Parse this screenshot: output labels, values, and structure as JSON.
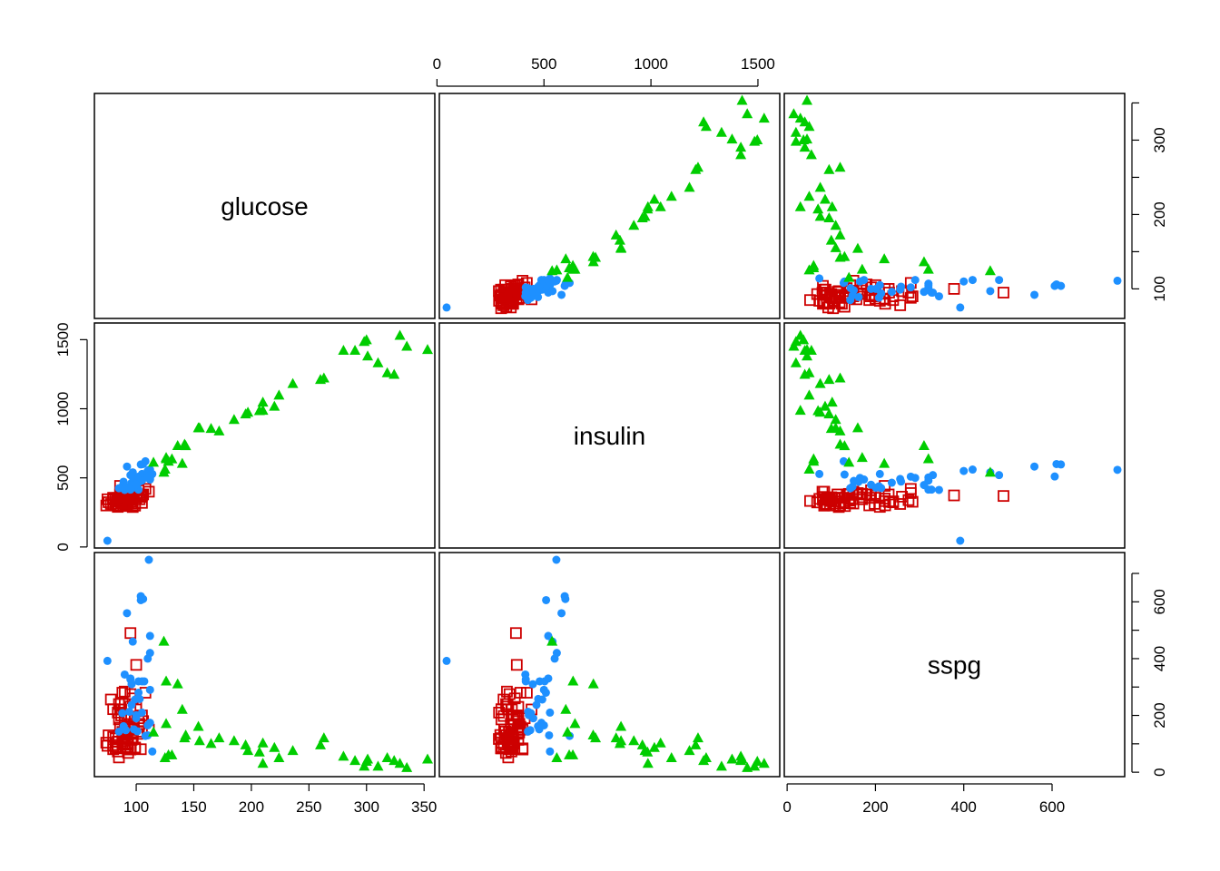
{
  "chart_data": {
    "type": "scatter",
    "variables": [
      "glucose",
      "insulin",
      "sspg"
    ],
    "diag_labels": {
      "glucose": "glucose",
      "insulin": "insulin",
      "sspg": "sspg"
    },
    "ticks": {
      "glucose": {
        "labels": [
          "100",
          "150",
          "200",
          "250",
          "300",
          "350"
        ],
        "values": [
          100,
          150,
          200,
          250,
          300,
          350
        ],
        "minor": [],
        "minor_values": []
      },
      "insulin": {
        "labels": [
          "0",
          "500",
          "1000",
          "1500"
        ],
        "values": [
          0,
          500,
          1000,
          1500
        ],
        "minor": [],
        "minor_values": []
      },
      "sspg": {
        "labels": [
          "0",
          "200",
          "400",
          "600"
        ],
        "values": [
          0,
          200,
          400,
          600
        ],
        "minor": [],
        "minor_values": []
      },
      "glucose_right": {
        "labels": [
          "100",
          "200",
          "300"
        ],
        "values": [
          100,
          200,
          300
        ],
        "minor_values": [
          150,
          250,
          350
        ]
      },
      "sspg_right": {
        "labels": [
          "0",
          "200",
          "400",
          "600"
        ],
        "values": [
          0,
          200,
          400,
          600
        ],
        "minor_values": [
          100,
          300,
          500,
          700
        ]
      }
    },
    "ranges": {
      "glucose": [
        70,
        353
      ],
      "insulin": [
        45,
        1568
      ],
      "sspg": [
        10,
        748
      ]
    },
    "grid": false,
    "legend": "none",
    "series": [
      {
        "group": 3,
        "marker": "square",
        "color": "#cd0000",
        "points": [
          [
            80,
            356,
            124
          ],
          [
            97,
            289,
            117
          ],
          [
            105,
            319,
            143
          ],
          [
            90,
            356,
            199
          ],
          [
            90,
            323,
            240
          ],
          [
            86,
            381,
            157
          ],
          [
            100,
            350,
            221
          ],
          [
            85,
            301,
            186
          ],
          [
            97,
            379,
            142
          ],
          [
            91,
            296,
            131
          ],
          [
            87,
            332,
            221
          ],
          [
            78,
            311,
            256
          ],
          [
            90,
            327,
            284
          ],
          [
            86,
            442,
            221
          ],
          [
            80,
            340,
            81
          ],
          [
            90,
            335,
            100
          ],
          [
            99,
            299,
            84
          ],
          [
            85,
            333,
            52
          ],
          [
            90,
            332,
            97
          ],
          [
            90,
            346,
            150
          ],
          [
            88,
            356,
            102
          ],
          [
            95,
            326,
            231
          ],
          [
            90,
            352,
            141
          ],
          [
            92,
            312,
            198
          ],
          [
            74,
            300,
            104
          ],
          [
            98,
            385,
            170
          ],
          [
            92,
            400,
            84
          ],
          [
            93,
            312,
            97
          ],
          [
            88,
            336,
            142
          ],
          [
            96,
            380,
            114
          ],
          [
            88,
            316,
            130
          ],
          [
            82,
            300,
            119
          ],
          [
            95,
            339,
            275
          ],
          [
            90,
            355,
            187
          ],
          [
            93,
            322,
            68
          ],
          [
            95,
            344,
            86
          ],
          [
            80,
            353,
            96
          ],
          [
            92,
            302,
            89
          ],
          [
            99,
            312,
            87
          ],
          [
            84,
            348,
            73
          ],
          [
            84,
            355,
            107
          ],
          [
            75,
            345,
            93
          ],
          [
            82,
            301,
            84
          ],
          [
            92,
            356,
            117
          ],
          [
            92,
            380,
            190
          ],
          [
            100,
            373,
            378
          ],
          [
            84,
            351,
            108
          ],
          [
            101,
            380,
            135
          ],
          [
            80,
            301,
            222
          ],
          [
            104,
            362,
            81
          ],
          [
            97,
            384,
            140
          ],
          [
            93,
            390,
            160
          ],
          [
            92,
            348,
            140
          ],
          [
            88,
            316,
            120
          ],
          [
            96,
            377,
            150
          ],
          [
            90,
            330,
            110
          ],
          [
            94,
            360,
            170
          ],
          [
            95,
            400,
            80
          ],
          [
            105,
            372,
            200
          ],
          [
            82,
            352,
            90
          ],
          [
            106,
            380,
            180
          ],
          [
            76,
            324,
            130
          ],
          [
            88,
            390,
            280
          ],
          [
            96,
            314,
            150
          ],
          [
            95,
            369,
            490
          ],
          [
            85,
            330,
            240
          ],
          [
            102,
            410,
            190
          ],
          [
            97,
            364,
            260
          ],
          [
            84,
            290,
            210
          ],
          [
            103,
            345,
            170
          ],
          [
            87,
            372,
            200
          ],
          [
            108,
            420,
            280
          ],
          [
            93,
            360,
            100
          ],
          [
            111,
            400,
            150
          ],
          [
            100,
            380,
            230
          ],
          [
            89,
            300,
            120
          ]
        ]
      },
      {
        "group": 2,
        "marker": "circle",
        "color": "#1e90ff",
        "points": [
          [
            98,
            478,
            151
          ],
          [
            88,
            439,
            208
          ],
          [
            100,
            429,
            201
          ],
          [
            89,
            472,
            162
          ],
          [
            91,
            436,
            148
          ],
          [
            90,
            413,
            344
          ],
          [
            94,
            426,
            213
          ],
          [
            85,
            425,
            143
          ],
          [
            96,
            465,
            237
          ],
          [
            111,
            558,
            748
          ],
          [
            107,
            503,
            320
          ],
          [
            114,
            528,
            73
          ],
          [
            101,
            426,
            144
          ],
          [
            108,
            620,
            128
          ],
          [
            112,
            488,
            174
          ],
          [
            105,
            528,
            210
          ],
          [
            103,
            473,
            258
          ],
          [
            99,
            492,
            256
          ],
          [
            102,
            415,
            320
          ],
          [
            110,
            524,
            130
          ],
          [
            102,
            509,
            280
          ],
          [
            96,
            448,
            310
          ],
          [
            95,
            415,
            327
          ],
          [
            112,
            560,
            420
          ],
          [
            110,
            550,
            400
          ],
          [
            104,
            510,
            606
          ],
          [
            112,
            500,
            290
          ],
          [
            92,
            582,
            560
          ],
          [
            104,
            597,
            620
          ],
          [
            105,
            480,
            320
          ],
          [
            75,
            45,
            392
          ],
          [
            110,
            500,
            165
          ],
          [
            100,
            450,
            190
          ],
          [
            95,
            520,
            330
          ],
          [
            106,
            600,
            610
          ],
          [
            112,
            520,
            480
          ],
          [
            97,
            540,
            460
          ]
        ]
      },
      {
        "group": 1,
        "marker": "triangle",
        "color": "#00cd00",
        "points": [
          [
            124,
            538,
            460
          ],
          [
            126,
            636,
            320
          ],
          [
            220,
            1016,
            86
          ],
          [
            224,
            1096,
            50
          ],
          [
            140,
            602,
            220
          ],
          [
            136,
            731,
            310
          ],
          [
            172,
            837,
            120
          ],
          [
            236,
            1180,
            75
          ],
          [
            154,
            860,
            160
          ],
          [
            300,
            1497,
            37
          ],
          [
            353,
            1426,
            45
          ],
          [
            301,
            1379,
            45
          ],
          [
            318,
            1258,
            50
          ],
          [
            324,
            1246,
            40
          ],
          [
            329,
            1529,
            30
          ],
          [
            207,
            984,
            70
          ],
          [
            210,
            986,
            30
          ],
          [
            260,
            1209,
            95
          ],
          [
            310,
            1330,
            20
          ],
          [
            155,
            860,
            110
          ],
          [
            142,
            741,
            120
          ],
          [
            128,
            618,
            60
          ],
          [
            210,
            1045,
            102
          ],
          [
            143,
            730,
            130
          ],
          [
            125,
            560,
            50
          ],
          [
            126,
            645,
            170
          ],
          [
            165,
            855,
            100
          ],
          [
            197,
            972,
            75
          ],
          [
            298,
            1484,
            20
          ],
          [
            335,
            1450,
            15
          ],
          [
            131,
            635,
            60
          ],
          [
            290,
            1420,
            40
          ],
          [
            263,
            1220,
            120
          ],
          [
            115,
            610,
            140
          ],
          [
            195,
            960,
            95
          ],
          [
            185,
            920,
            110
          ],
          [
            280,
            1420,
            55
          ]
        ]
      }
    ]
  }
}
